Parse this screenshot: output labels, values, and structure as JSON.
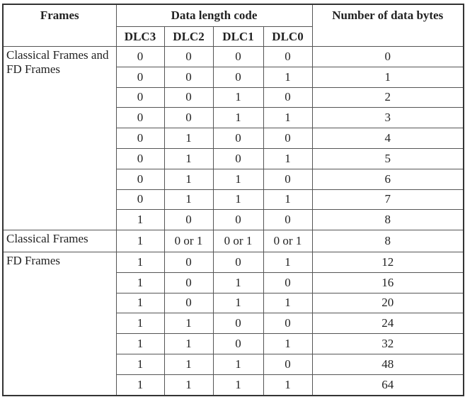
{
  "header": {
    "frames": "Frames",
    "dlc": "Data length code",
    "bytes": "Number of data bytes",
    "dlc_cols": [
      "DLC3",
      "DLC2",
      "DLC1",
      "DLC0"
    ]
  },
  "groups": [
    {
      "label": "Classical Frames and FD Frames",
      "rows": [
        [
          "0",
          "0",
          "0",
          "0",
          "0"
        ],
        [
          "0",
          "0",
          "0",
          "1",
          "1"
        ],
        [
          "0",
          "0",
          "1",
          "0",
          "2"
        ],
        [
          "0",
          "0",
          "1",
          "1",
          "3"
        ],
        [
          "0",
          "1",
          "0",
          "0",
          "4"
        ],
        [
          "0",
          "1",
          "0",
          "1",
          "5"
        ],
        [
          "0",
          "1",
          "1",
          "0",
          "6"
        ],
        [
          "0",
          "1",
          "1",
          "1",
          "7"
        ],
        [
          "1",
          "0",
          "0",
          "0",
          "8"
        ]
      ]
    },
    {
      "label": "Classical Frames",
      "rows": [
        [
          "1",
          "0 or 1",
          "0 or 1",
          "0 or 1",
          "8"
        ]
      ]
    },
    {
      "label": "FD Frames",
      "rows": [
        [
          "1",
          "0",
          "0",
          "1",
          "12"
        ],
        [
          "1",
          "0",
          "1",
          "0",
          "16"
        ],
        [
          "1",
          "0",
          "1",
          "1",
          "20"
        ],
        [
          "1",
          "1",
          "0",
          "0",
          "24"
        ],
        [
          "1",
          "1",
          "0",
          "1",
          "32"
        ],
        [
          "1",
          "1",
          "1",
          "0",
          "48"
        ],
        [
          "1",
          "1",
          "1",
          "1",
          "64"
        ]
      ]
    }
  ]
}
